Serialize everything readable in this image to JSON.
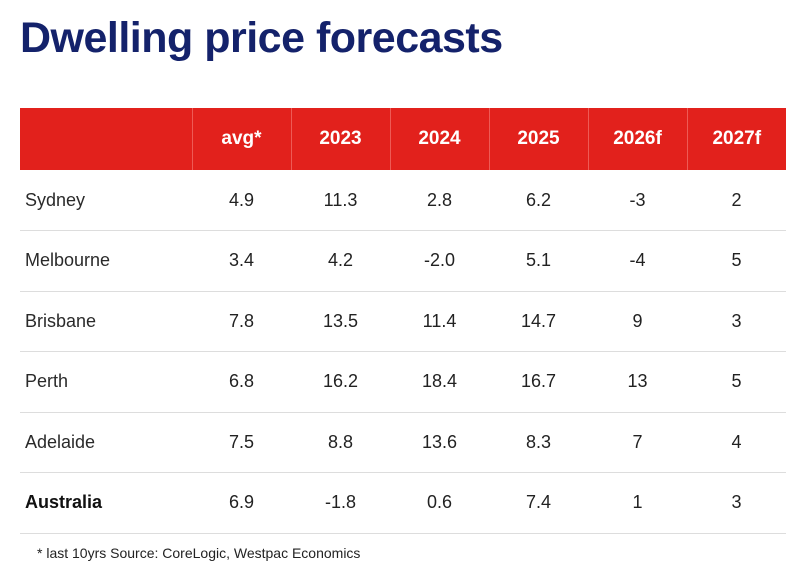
{
  "title": "Dwelling price forecasts",
  "footnote": "* last 10yrs Source: CoreLogic, Westpac Economics",
  "colors": {
    "title": "#14226b",
    "header_background": "#e2211c",
    "header_text": "#ffffff"
  },
  "chart_data": {
    "type": "table",
    "title": "Dwelling price forecasts",
    "columns": [
      "",
      "avg*",
      "2023",
      "2024",
      "2025",
      "2026f",
      "2027f"
    ],
    "rows": [
      {
        "label": "Sydney",
        "values": [
          "4.9",
          "11.3",
          "2.8",
          "6.2",
          "-3",
          "2"
        ]
      },
      {
        "label": "Melbourne",
        "values": [
          "3.4",
          "4.2",
          "-2.0",
          "5.1",
          "-4",
          "5"
        ]
      },
      {
        "label": "Brisbane",
        "values": [
          "7.8",
          "13.5",
          "11.4",
          "14.7",
          "9",
          "3"
        ]
      },
      {
        "label": "Perth",
        "values": [
          "6.8",
          "16.2",
          "18.4",
          "16.7",
          "13",
          "5"
        ]
      },
      {
        "label": "Adelaide",
        "values": [
          "7.5",
          "8.8",
          "13.6",
          "8.3",
          "7",
          "4"
        ]
      },
      {
        "label": "Australia",
        "values": [
          "6.9",
          "-1.8",
          "0.6",
          "7.4",
          "1",
          "3"
        ]
      }
    ]
  }
}
